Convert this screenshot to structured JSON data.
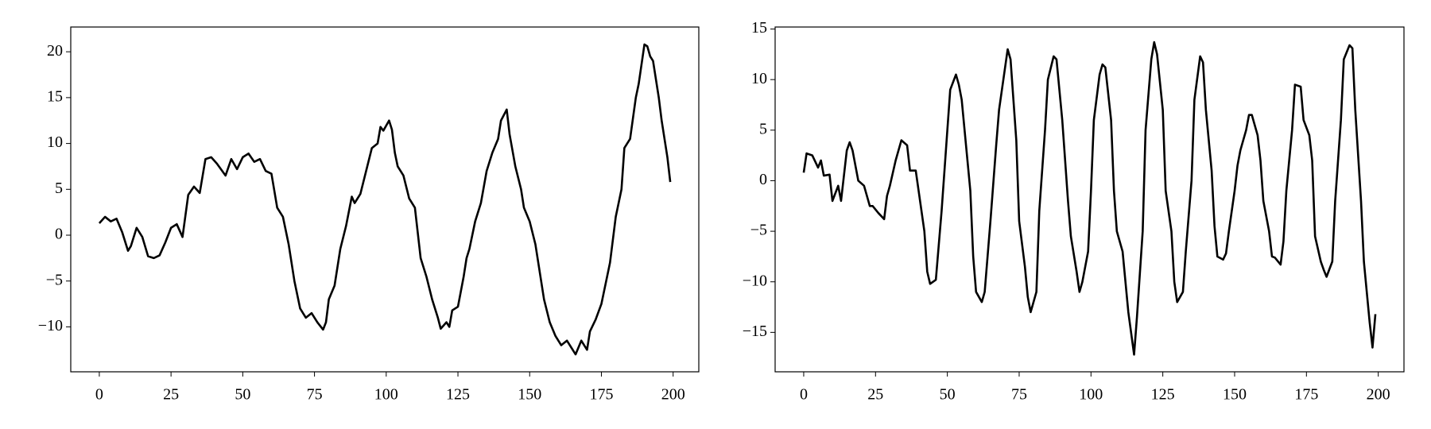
{
  "chart_data": [
    {
      "type": "line",
      "color": "#000000",
      "x": [
        0,
        2,
        4,
        6,
        8,
        10,
        11,
        13,
        15,
        17,
        19,
        21,
        23,
        25,
        27,
        29,
        31,
        33,
        35,
        37,
        39,
        41,
        44,
        46,
        48,
        50,
        52,
        54,
        56,
        58,
        60,
        62,
        64,
        66,
        68,
        70,
        72,
        74,
        76,
        78,
        79,
        80,
        82,
        84,
        86,
        88,
        89,
        91,
        93,
        95,
        97,
        98,
        99,
        101,
        102,
        103,
        104,
        106,
        108,
        110,
        112,
        114,
        116,
        118,
        119,
        121,
        122,
        123,
        125,
        127,
        128,
        129,
        131,
        133,
        135,
        137,
        139,
        140,
        142,
        143,
        145,
        147,
        148,
        150,
        152,
        153,
        155,
        157,
        159,
        161,
        163,
        165,
        166,
        168,
        170,
        171,
        173,
        175,
        177,
        178,
        180,
        182,
        183,
        185,
        187,
        188,
        190,
        191,
        192,
        193,
        195,
        196,
        198,
        199
      ],
      "values": [
        1.3,
        2,
        1.5,
        1.8,
        0.3,
        -1.7,
        -1.2,
        0.8,
        -0.2,
        -2.3,
        -2.5,
        -2.2,
        -0.8,
        0.8,
        1.2,
        -0.2,
        4.4,
        5.3,
        4.6,
        8.3,
        8.5,
        7.8,
        6.5,
        8.3,
        7.2,
        8.5,
        8.9,
        8,
        8.3,
        7,
        6.7,
        3,
        2,
        -1,
        -5,
        -8,
        -9,
        -8.5,
        -9.5,
        -10.3,
        -9.5,
        -7,
        -5.5,
        -1.5,
        1,
        4.2,
        3.5,
        4.5,
        7,
        9.5,
        10,
        11.8,
        11.4,
        12.5,
        11.5,
        9,
        7.5,
        6.5,
        4,
        3,
        -2.5,
        -4.5,
        -7,
        -9,
        -10.2,
        -9.5,
        -10,
        -8.2,
        -7.8,
        -4.5,
        -2.5,
        -1.5,
        1.5,
        3.5,
        7,
        9,
        10.5,
        12.5,
        13.7,
        11,
        7.5,
        5,
        3,
        1.5,
        -1,
        -3,
        -7,
        -9.5,
        -11,
        -12,
        -11.5,
        -12.5,
        -13,
        -11.5,
        -12.5,
        -10.5,
        -9.2,
        -7.5,
        -4.5,
        -3,
        2,
        5,
        9.5,
        10.5,
        15,
        16.5,
        20.8,
        20.6,
        19.5,
        19,
        15,
        12.5,
        8.5,
        5.8
      ],
      "xlim": [
        -9.95,
        208.95
      ],
      "ylim": [
        -14.9,
        22.7
      ],
      "xticks": [
        0,
        25,
        50,
        75,
        100,
        125,
        150,
        175,
        200
      ],
      "yticks": [
        {
          "value": -10,
          "label": "−10"
        },
        {
          "value": -5,
          "label": "−5"
        },
        0,
        5,
        10,
        15,
        20
      ]
    },
    {
      "type": "line",
      "color": "#000000",
      "x": [
        0,
        1,
        3,
        5,
        6,
        7,
        9,
        10,
        12,
        13,
        15,
        16,
        17,
        19,
        21,
        23,
        24,
        26,
        28,
        29,
        30,
        32,
        34,
        36,
        37,
        39,
        40,
        42,
        43,
        44,
        46,
        48,
        50,
        51,
        53,
        54,
        55,
        56,
        58,
        59,
        60,
        62,
        63,
        65,
        67,
        68,
        70,
        71,
        72,
        74,
        75,
        77,
        78,
        79,
        81,
        82,
        84,
        85,
        87,
        88,
        90,
        92,
        93,
        95,
        96,
        97,
        99,
        100,
        101,
        103,
        104,
        105,
        107,
        108,
        109,
        111,
        112,
        113,
        115,
        116,
        118,
        119,
        121,
        122,
        123,
        125,
        126,
        128,
        129,
        130,
        132,
        133,
        135,
        136,
        138,
        139,
        140,
        142,
        143,
        144,
        146,
        147,
        148,
        150,
        151,
        152,
        154,
        155,
        156,
        158,
        159,
        160,
        162,
        163,
        164,
        166,
        167,
        168,
        170,
        171,
        173,
        174,
        176,
        177,
        178,
        180,
        181,
        182,
        184,
        185,
        187,
        188,
        190,
        191,
        192,
        194,
        195,
        197,
        198,
        199
      ],
      "values": [
        0.8,
        2.7,
        2.5,
        1.3,
        2,
        0.5,
        0.6,
        -2,
        -0.5,
        -2,
        3,
        3.8,
        3,
        0,
        -0.5,
        -2.5,
        -2.5,
        -3.2,
        -3.8,
        -1.5,
        -0.5,
        2,
        4,
        3.5,
        1,
        1,
        -1,
        -5,
        -9,
        -10.2,
        -9.8,
        -3,
        5,
        9,
        10.5,
        9.5,
        8,
        5,
        -1,
        -7.5,
        -11,
        -12,
        -11,
        -4,
        3.5,
        7,
        11,
        13,
        12,
        4,
        -4,
        -8.5,
        -11.5,
        -13,
        -11,
        -3,
        5,
        10,
        12.3,
        12,
        6,
        -2,
        -5.5,
        -9,
        -11,
        -10,
        -7,
        -1,
        6,
        10.5,
        11.5,
        11.2,
        6,
        -1,
        -5,
        -7,
        -10,
        -13,
        -17.2,
        -13.5,
        -5,
        5,
        12,
        13.7,
        12.5,
        7,
        -1,
        -5,
        -10,
        -12,
        -11,
        -7,
        0,
        8,
        12.3,
        11.7,
        7,
        1,
        -4.5,
        -7.5,
        -7.8,
        -7.2,
        -5,
        -1,
        1.5,
        3,
        5,
        6.5,
        6.5,
        4.5,
        2,
        -2,
        -5,
        -7.5,
        -7.6,
        -8.3,
        -6,
        -1,
        5,
        9.5,
        9.3,
        6,
        4.5,
        2,
        -5.5,
        -8,
        -8.8,
        -9.5,
        -8,
        -2,
        6,
        12,
        13.4,
        13.1,
        7,
        -2,
        -8,
        -14,
        -16.5,
        -13.2
      ],
      "xlim": [
        -9.95,
        208.95
      ],
      "ylim": [
        -18.9,
        15.2
      ],
      "xticks": [
        0,
        25,
        50,
        75,
        100,
        125,
        150,
        175,
        200
      ],
      "yticks": [
        {
          "value": -15,
          "label": "−15"
        },
        {
          "value": -10,
          "label": "−10"
        },
        {
          "value": -5,
          "label": "−5"
        },
        0,
        5,
        10,
        15
      ]
    }
  ]
}
